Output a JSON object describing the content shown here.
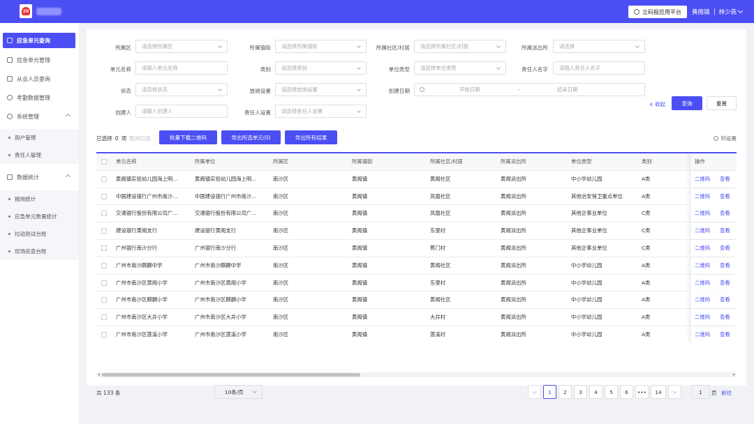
{
  "header": {
    "platform_button": "立码报应用平台",
    "org": "黄阁镇",
    "user": "林少燕"
  },
  "sidebar": {
    "items": [
      {
        "label": "应急单元查询",
        "active": true
      },
      {
        "label": "应急单元管理"
      },
      {
        "label": "从业人员查询"
      },
      {
        "label": "考勤数据管理"
      },
      {
        "label": "系统管理"
      },
      {
        "label": "数据统计"
      }
    ],
    "system_sub": [
      "用户管理",
      "责任人管理"
    ],
    "stats_sub": [
      "报岗统计",
      "应急单元数量统计",
      "拉动测试台账",
      "现场巡查台账"
    ]
  },
  "filters": {
    "district": {
      "label": "所属区",
      "placeholder": "请选择所属区"
    },
    "street": {
      "label": "所属镇街",
      "placeholder": "请选择所属镇街"
    },
    "community": {
      "label": "所属社区/村居",
      "placeholder": "请选择所属社区/村居"
    },
    "police": {
      "label": "所属派出所",
      "placeholder": "请选择"
    },
    "unit_name": {
      "label": "单元名称",
      "placeholder": "请输入单元名称"
    },
    "category": {
      "label": "类别",
      "placeholder": "请选择类别"
    },
    "unit_type": {
      "label": "单位类型",
      "placeholder": "请选择单位类型"
    },
    "person": {
      "label": "责任人名字",
      "placeholder": "请输入责任人名字"
    },
    "status": {
      "label": "状态",
      "placeholder": "请选择状态"
    },
    "post": {
      "label": "放岗设置",
      "placeholder": "请选择放岗设置"
    },
    "created": {
      "label": "创建日期",
      "start": "开始日期",
      "sep": "-",
      "end": "结束日期"
    },
    "creator": {
      "label": "创建人",
      "placeholder": "请输入创建人"
    },
    "owner_set": {
      "label": "责任人设置",
      "placeholder": "请选择责任人设置"
    },
    "collapse": "∧ 收起",
    "query": "查询",
    "reset": "重置"
  },
  "toolbar": {
    "selected_prefix": "已选择",
    "selected_count": "0",
    "selected_unit": "项",
    "cancel_selected": "取消已选",
    "batch_qr": "批量下载二维码",
    "export_selected": "导出所选单元(0)",
    "export_all": "导出所有结果",
    "column_settings": "列设置"
  },
  "table": {
    "columns": [
      "单元名称",
      "所属单位",
      "所属区",
      "所属镇街",
      "所属社区/村居",
      "所属派出所",
      "单位类型",
      "类别",
      "操作"
    ],
    "op_qr": "二维码",
    "op_view": "查看",
    "rows": [
      [
        "黄阁镇实验幼儿园海上明…",
        "黄阁镇实验幼儿园海上明…",
        "南沙区",
        "黄阁镇",
        "黄阁社区",
        "黄阁派出所",
        "中小学幼儿园",
        "A类"
      ],
      [
        "中国建设银行广州市南沙…",
        "中国建设银行广州市南沙…",
        "南沙区",
        "黄阁镇",
        "凤凰社区",
        "黄阁派出所",
        "其他治安保卫重点单位",
        "A类"
      ],
      [
        "交通银行股份有限公司广…",
        "交通银行股份有限公司广…",
        "南沙区",
        "黄阁镇",
        "凤凰社区",
        "黄阁派出所",
        "其他企事业单位",
        "C类"
      ],
      [
        "建设银行黄阁支行",
        "建设银行黄阁支行",
        "南沙区",
        "黄阁镇",
        "东里村",
        "黄阁派出所",
        "其他企事业单位",
        "C类"
      ],
      [
        "广州银行南沙分行",
        "广州银行南沙分行",
        "南沙区",
        "黄阁镇",
        "蕉门村",
        "黄阁派出所",
        "其他企事业单位",
        "C类"
      ],
      [
        "广州市南沙麒麟中学",
        "广州市南沙麒麟中学",
        "南沙区",
        "黄阁镇",
        "黄阁社区",
        "黄阁派出所",
        "中小学幼儿园",
        "A类"
      ],
      [
        "广州市南沙区黄阁小学",
        "广州市南沙区黄阁小学",
        "南沙区",
        "黄阁镇",
        "东里村",
        "黄阁派出所",
        "中小学幼儿园",
        "A类"
      ],
      [
        "广州市南沙区麒麟小学",
        "广州市南沙区麒麟小学",
        "南沙区",
        "黄阁镇",
        "黄阁社区",
        "黄阁派出所",
        "中小学幼儿园",
        "A类"
      ],
      [
        "广州市南沙区大井小学",
        "广州市南沙区大井小学",
        "南沙区",
        "黄阁镇",
        "大井村",
        "黄阁派出所",
        "中小学幼儿园",
        "A类"
      ],
      [
        "广州市南沙区莲溪小学",
        "广州市南沙区莲溪小学",
        "南沙区",
        "黄阁镇",
        "莲溪村",
        "黄阁派出所",
        "中小学幼儿园",
        "A类"
      ]
    ]
  },
  "pagination": {
    "total": "共 133 条",
    "page_size": "10条/页",
    "prev": "<",
    "next": ">",
    "pages": [
      "1",
      "2",
      "3",
      "4",
      "5",
      "6",
      "•••",
      "14"
    ],
    "current": "1",
    "jump_value": "1",
    "jump_unit": "页",
    "jump_go": "前往"
  }
}
